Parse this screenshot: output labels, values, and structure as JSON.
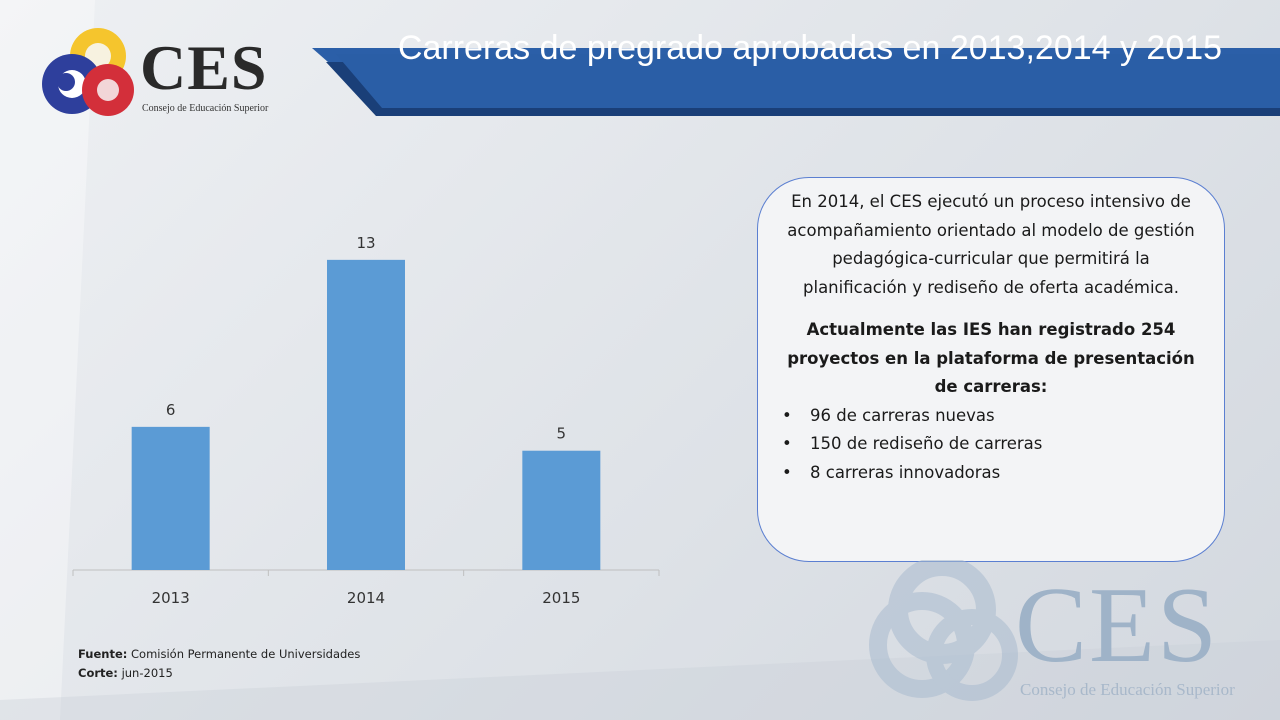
{
  "header": {
    "title": "Carreras de pregrado aprobadas en 2013,2014 y 2015"
  },
  "logo": {
    "word": "CES",
    "subtitle": "Consejo de Educación Superior"
  },
  "colors": {
    "bar": "#5b9bd5",
    "title_band": "#1f4e8c",
    "note_border": "#5b7fd1"
  },
  "chart_data": {
    "type": "bar",
    "categories": [
      "2013",
      "2014",
      "2015"
    ],
    "values": [
      6,
      13,
      5
    ],
    "title": "",
    "xlabel": "",
    "ylabel": "",
    "ylim": [
      0,
      14
    ],
    "grid": false,
    "data_labels": true
  },
  "note": {
    "paragraph1": "En 2014, el CES ejecutó un proceso intensivo de acompañamiento orientado al modelo de gestión pedagógica-curricular que permitirá  la planificación y rediseño de oferta académica.",
    "paragraph2": "Actualmente las IES han registrado 254 proyectos en la plataforma de presentación de carreras:",
    "bullets": [
      "96 de carreras nuevas",
      "150 de rediseño de carreras",
      "8 carreras innovadoras"
    ]
  },
  "source": {
    "label1": "Fuente:",
    "text1": " Comisión Permanente de Universidades",
    "label2": "Corte:",
    "text2": " jun-2015"
  },
  "watermark": {
    "word": "CES",
    "subtitle": "Consejo de Educación Superior"
  }
}
